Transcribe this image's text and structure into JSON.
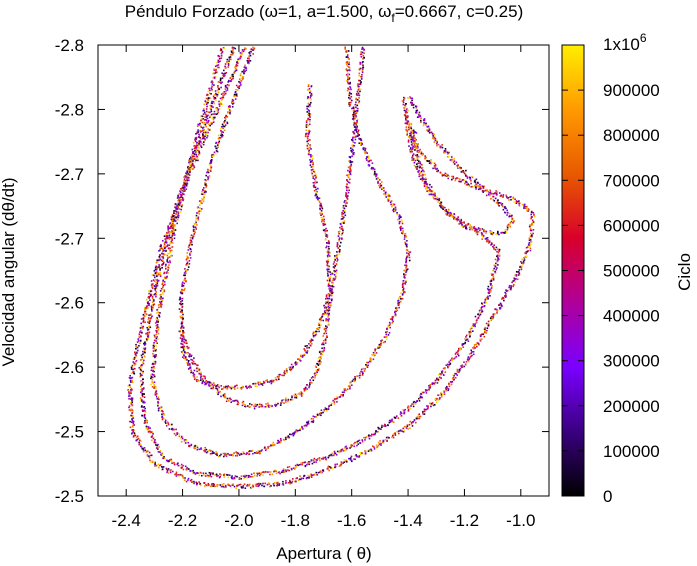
{
  "chart_data": {
    "type": "scatter",
    "title": "Péndulo Forzado (ω=1, a=1.500, ω_f=0.6667, c=0.25)",
    "title_parts": {
      "before_sub": "Péndulo Forzado (ω=1, a=1.500, ω",
      "sub": "f",
      "after_sub": "=0.6667, c=0.25)"
    },
    "xlabel": "Apertura ( θ)",
    "ylabel": "Velocidad angular (dθ/dt)",
    "xlim": [
      -2.5,
      -0.9
    ],
    "ylim": [
      -2.85,
      -2.5
    ],
    "x_ticks": [
      -2.4,
      -2.2,
      -2.0,
      -1.8,
      -1.6,
      -1.4,
      -1.2,
      -1.0
    ],
    "x_tick_labels": [
      "-2.4",
      "-2.2",
      "-2.0",
      "-1.8",
      "-1.6",
      "-1.4",
      "-1.2",
      "-1.0"
    ],
    "y_ticks": [
      -2.5,
      -2.55,
      -2.6,
      -2.65,
      -2.7,
      -2.75,
      -2.8,
      -2.85
    ],
    "y_tick_labels": [
      "-2.5",
      "-2.5",
      "-2.6",
      "-2.6",
      "-2.7",
      "-2.7",
      "-2.8",
      "-2.8"
    ],
    "colorbar": {
      "label": "Ciclo",
      "range": [
        0,
        1000000
      ],
      "ticks": [
        0,
        100000,
        200000,
        300000,
        400000,
        500000,
        600000,
        700000,
        800000,
        900000
      ],
      "tick_labels": [
        "0",
        "100000",
        "200000",
        "300000",
        "400000",
        "500000",
        "600000",
        "700000",
        "800000",
        "900000"
      ],
      "top_label_base": "1x10",
      "top_label_exp": "6",
      "colormap": [
        "#000000",
        "#3a0080",
        "#7a00ff",
        "#b0009a",
        "#d8002a",
        "#e85a00",
        "#ff9a00",
        "#ffee00"
      ]
    },
    "grid": false,
    "point_color_by": "Ciclo",
    "series": [
      {
        "curve": "outer-loop",
        "x": [
          -1.98,
          -2.08,
          -2.18,
          -2.28,
          -2.35,
          -2.39,
          -2.38,
          -2.3,
          -2.15,
          -2.0,
          -1.85,
          -1.7,
          -1.55,
          -1.4,
          -1.28,
          -1.18,
          -1.1,
          -1.02,
          -0.97,
          -0.96,
          -1.02,
          -1.15,
          -1.28,
          -1.37,
          -1.4,
          -1.42
        ],
        "y": [
          -2.85,
          -2.8,
          -2.75,
          -2.69,
          -2.63,
          -2.585,
          -2.55,
          -2.525,
          -2.51,
          -2.508,
          -2.51,
          -2.52,
          -2.535,
          -2.555,
          -2.58,
          -2.61,
          -2.64,
          -2.67,
          -2.695,
          -2.72,
          -2.73,
          -2.74,
          -2.75,
          -2.77,
          -2.79,
          -2.81
        ]
      },
      {
        "curve": "band-2",
        "x": [
          -2.02,
          -2.12,
          -2.22,
          -2.3,
          -2.35,
          -2.34,
          -2.27,
          -2.15,
          -2.0,
          -1.85,
          -1.7,
          -1.55,
          -1.42,
          -1.3,
          -1.2,
          -1.12,
          -1.08,
          -1.15,
          -1.26,
          -1.34,
          -1.38,
          -1.4,
          -1.41
        ],
        "y": [
          -2.85,
          -2.79,
          -2.73,
          -2.66,
          -2.6,
          -2.56,
          -2.53,
          -2.518,
          -2.515,
          -2.52,
          -2.53,
          -2.545,
          -2.565,
          -2.59,
          -2.62,
          -2.655,
          -2.69,
          -2.705,
          -2.72,
          -2.74,
          -2.76,
          -2.78,
          -2.8
        ]
      },
      {
        "curve": "band-3",
        "x": [
          -2.06,
          -2.15,
          -2.23,
          -2.29,
          -2.31,
          -2.27,
          -2.18,
          -2.06,
          -1.93,
          -1.8,
          -1.68,
          -1.57,
          -1.48,
          -1.42,
          -1.4,
          -1.44,
          -1.52,
          -1.58,
          -1.61,
          -1.62
        ],
        "y": [
          -2.85,
          -2.78,
          -2.71,
          -2.64,
          -2.59,
          -2.56,
          -2.54,
          -2.532,
          -2.535,
          -2.55,
          -2.57,
          -2.595,
          -2.625,
          -2.66,
          -2.69,
          -2.72,
          -2.75,
          -2.78,
          -2.81,
          -2.85
        ]
      },
      {
        "curve": "band-4",
        "x": [
          -1.56,
          -1.58,
          -1.6,
          -1.63,
          -1.66,
          -1.68,
          -1.7,
          -1.73,
          -1.78,
          -1.86,
          -1.95,
          -2.04,
          -2.12,
          -2.18,
          -2.21
        ],
        "y": [
          -2.85,
          -2.81,
          -2.77,
          -2.72,
          -2.68,
          -2.65,
          -2.62,
          -2.595,
          -2.58,
          -2.572,
          -2.57,
          -2.575,
          -2.59,
          -2.61,
          -2.63
        ]
      },
      {
        "curve": "inner-loop",
        "x": [
          -1.95,
          -2.02,
          -2.1,
          -2.17,
          -2.21,
          -2.2,
          -2.15,
          -2.07,
          -1.98,
          -1.88,
          -1.79,
          -1.72,
          -1.68,
          -1.69,
          -1.73,
          -1.76,
          -1.75
        ],
        "y": [
          -2.85,
          -2.81,
          -2.76,
          -2.7,
          -2.65,
          -2.61,
          -2.59,
          -2.585,
          -2.585,
          -2.59,
          -2.605,
          -2.63,
          -2.66,
          -2.7,
          -2.74,
          -2.78,
          -2.82
        ]
      },
      {
        "curve": "hook",
        "x": [
          -1.4,
          -1.36,
          -1.3,
          -1.22,
          -1.14,
          -1.07,
          -1.03,
          -1.06,
          -1.12,
          -1.2,
          -1.28,
          -1.34,
          -1.37,
          -1.38
        ],
        "y": [
          -2.81,
          -2.795,
          -2.775,
          -2.755,
          -2.74,
          -2.725,
          -2.715,
          -2.705,
          -2.705,
          -2.71,
          -2.725,
          -2.745,
          -2.765,
          -2.785
        ]
      }
    ]
  }
}
